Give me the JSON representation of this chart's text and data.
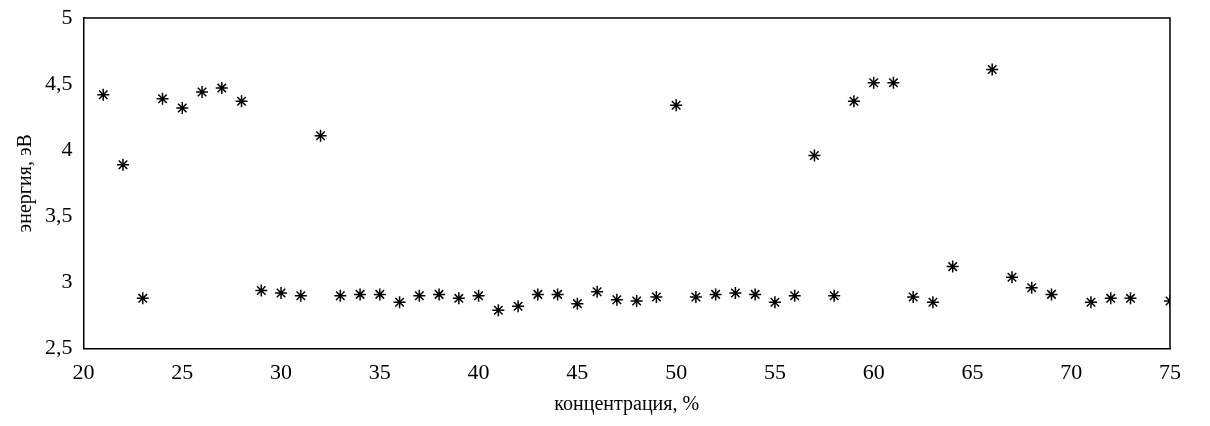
{
  "chart_data": {
    "type": "scatter",
    "xlabel": "концентрация, %",
    "ylabel": "энергия, эВ",
    "x": [
      21,
      22,
      23,
      24,
      25,
      26,
      27,
      28,
      29,
      30,
      31,
      32,
      33,
      34,
      35,
      36,
      37,
      38,
      39,
      40,
      41,
      42,
      43,
      44,
      45,
      46,
      47,
      48,
      49,
      50,
      51,
      52,
      53,
      54,
      55,
      56,
      57,
      58,
      59,
      60,
      61,
      62,
      63,
      64,
      66,
      67,
      68,
      69,
      71,
      72,
      73,
      75
    ],
    "series": [
      {
        "color": "#000000",
        "values": [
          4.42,
          3.89,
          2.88,
          4.39,
          4.32,
          4.44,
          4.47,
          4.37,
          2.94,
          2.92,
          2.9,
          4.11,
          2.9,
          2.91,
          2.91,
          2.85,
          2.9,
          2.91,
          2.88,
          2.9,
          2.79,
          2.82,
          2.91,
          2.91,
          2.84,
          2.93,
          2.87,
          2.86,
          2.89,
          4.34,
          2.89,
          2.91,
          2.92,
          2.91,
          2.85,
          2.9,
          3.96,
          2.9,
          4.37,
          4.51,
          4.51,
          2.89,
          2.85,
          3.12,
          4.61,
          3.04,
          2.96,
          2.91,
          2.85,
          2.88,
          2.88,
          2.86
        ]
      }
    ],
    "xlim": [
      20,
      75
    ],
    "xticks": [
      20,
      25,
      30,
      35,
      40,
      45,
      50,
      55,
      60,
      65,
      70,
      75
    ],
    "ylim": [
      2.5,
      5
    ],
    "yticks": [
      {
        "value": 2.5,
        "label": "2,5"
      },
      3,
      {
        "value": 3.5,
        "label": "3,5"
      },
      4,
      {
        "value": 4.5,
        "label": "4,5"
      },
      5
    ],
    "marker": "cross",
    "grid": false,
    "legend": false
  }
}
